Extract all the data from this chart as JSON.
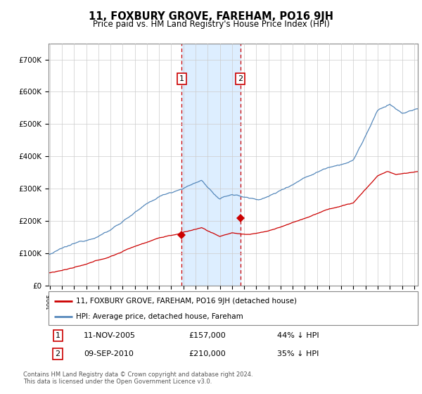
{
  "title": "11, FOXBURY GROVE, FAREHAM, PO16 9JH",
  "subtitle": "Price paid vs. HM Land Registry's House Price Index (HPI)",
  "hpi_label": "HPI: Average price, detached house, Fareham",
  "property_label": "11, FOXBURY GROVE, FAREHAM, PO16 9JH (detached house)",
  "sale1_date": "11-NOV-2005",
  "sale1_price": 157000,
  "sale1_text": "44% ↓ HPI",
  "sale2_date": "09-SEP-2010",
  "sale2_price": 210000,
  "sale2_text": "35% ↓ HPI",
  "sale1_year": 2005.87,
  "sale2_year": 2010.69,
  "footer1": "Contains HM Land Registry data © Crown copyright and database right 2024.",
  "footer2": "This data is licensed under the Open Government Licence v3.0.",
  "hpi_color": "#5588bb",
  "property_color": "#cc0000",
  "shade_color": "#ddeeff",
  "vline_color": "#cc0000",
  "ylim_max": 750000,
  "background_color": "#ffffff"
}
